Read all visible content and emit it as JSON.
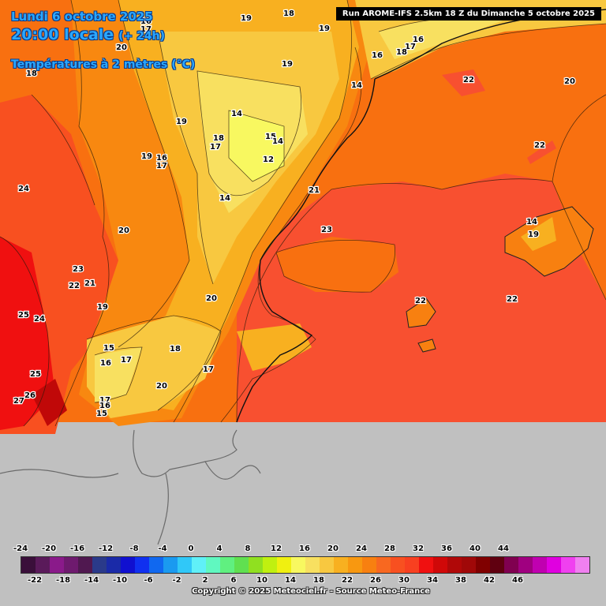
{
  "header": {
    "date": "Lundi 6 octobre 2025",
    "time": "20:00 locale",
    "lead": "(+ 24h)",
    "parameter": "Températures à 2 mètres (°C)"
  },
  "run_info": "Run AROME-IFS 2.5km 18 Z du Dimanche 5 octobre 2025",
  "map_labels": [
    "16",
    "17",
    "19",
    "18",
    "19",
    "20",
    "17",
    "16",
    "18",
    "16",
    "19",
    "22",
    "20",
    "18",
    "19",
    "14",
    "14",
    "19",
    "18",
    "17",
    "15",
    "14",
    "16",
    "17",
    "12",
    "22",
    "24",
    "21",
    "14",
    "20",
    "23",
    "23",
    "22",
    "21",
    "14",
    "19",
    "20",
    "25",
    "24",
    "19",
    "22",
    "22",
    "15",
    "18",
    "16",
    "17",
    "25",
    "17",
    "20",
    "27",
    "26",
    "17",
    "16",
    "15"
  ],
  "legend": {
    "colors": [
      "#3a0f3a",
      "#5a1a5a",
      "#8a1a8a",
      "#6e1a6e",
      "#501850",
      "#2a3a8a",
      "#1a2aa8",
      "#1010d0",
      "#1030f0",
      "#1068f0",
      "#1a9af0",
      "#30c8f8",
      "#60f0f8",
      "#60f8c0",
      "#60f080",
      "#60e050",
      "#90e020",
      "#c0f010",
      "#f0f010",
      "#f8f860",
      "#f8e060",
      "#f8c840",
      "#f8b020",
      "#f89810",
      "#f88010",
      "#f86820",
      "#f85020",
      "#f84020",
      "#f01010",
      "#d00808",
      "#b00808",
      "#a00808",
      "#800000",
      "#600010",
      "#800050",
      "#a00080",
      "#c000b0",
      "#e000e0",
      "#f040f0",
      "#f080f0"
    ],
    "ticks_top": [
      "-24",
      "-20",
      "-16",
      "-12",
      "-8",
      "-4",
      "0",
      "4",
      "8",
      "12",
      "16",
      "20",
      "24",
      "28",
      "32",
      "36",
      "40",
      "44"
    ],
    "ticks_bottom": [
      "-22",
      "-18",
      "-14",
      "-10",
      "-6",
      "-2",
      "2",
      "6",
      "10",
      "14",
      "18",
      "22",
      "26",
      "30",
      "34",
      "38",
      "42",
      "46"
    ]
  },
  "copyright": "Copyright © 2025 Meteociel.fr - Source Meteo-France"
}
